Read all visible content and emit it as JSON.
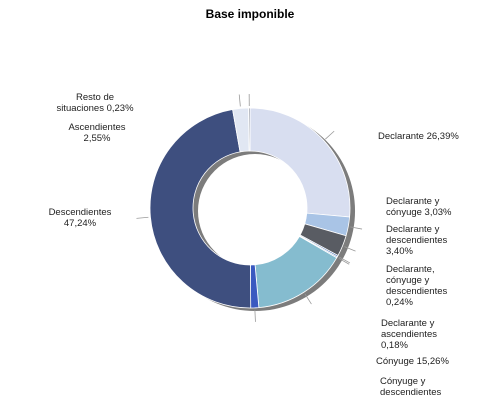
{
  "chart_data": {
    "type": "pie",
    "title": "Base imponible",
    "start_angle_deg": 0,
    "direction": "clockwise",
    "donut": true,
    "slices": [
      {
        "label_lines": [
          "Declarante 26,39%"
        ],
        "label": "Declarante",
        "value": 26.39,
        "color": "#D8DEF0"
      },
      {
        "label_lines": [
          "Declarante y",
          "cónyuge 3,03%"
        ],
        "label": "Declarante y cónyuge",
        "value": 3.03,
        "color": "#A9C4E6"
      },
      {
        "label_lines": [
          "Declarante y",
          "descendientes",
          "3,40%"
        ],
        "label": "Declarante y descendientes",
        "value": 3.4,
        "color": "#595C63"
      },
      {
        "label_lines": [
          "Declarante,",
          "cónyuge y",
          "descendientes",
          "0,24%"
        ],
        "label": "Declarante, cónyuge y descendientes",
        "value": 0.24,
        "color": "#4B73B4"
      },
      {
        "label_lines": [
          "Declarante y",
          "ascendientes",
          "0,18%"
        ],
        "label": "Declarante y ascendientes",
        "value": 0.18,
        "color": "#6E8FC8"
      },
      {
        "label_lines": [
          "Cónyuge 15,26%"
        ],
        "label": "Cónyuge",
        "value": 15.26,
        "color": "#85BCCF"
      },
      {
        "label_lines": [
          "Cónyuge y",
          "descendientes"
        ],
        "label": "Cónyuge y descendientes",
        "value": 1.3,
        "color": "#3A59C0"
      },
      {
        "label_lines": [
          "Descendientes",
          "47,24%"
        ],
        "label": "Descendientes",
        "value": 47.24,
        "color": "#3E4F7F"
      },
      {
        "label_lines": [
          "Ascendientes",
          "2,55%"
        ],
        "label": "Ascendientes",
        "value": 2.55,
        "color": "#E1E7F3"
      },
      {
        "label_lines": [
          "Resto de",
          "situaciones 0,23%"
        ],
        "label": "Resto de situaciones",
        "value": 0.23,
        "color": "#8A8F9A"
      }
    ]
  }
}
